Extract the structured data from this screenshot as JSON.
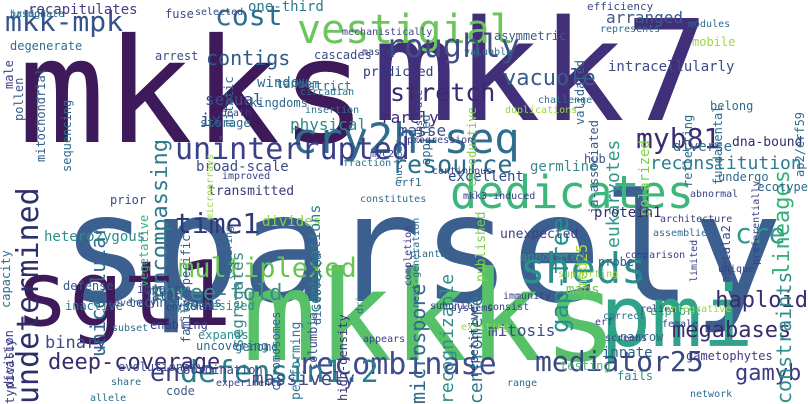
{
  "words": [
    {
      "text": "sparsely",
      "color": "#3b5f8f"
    },
    {
      "text": "mkks",
      "color": "#3f1a5a"
    },
    {
      "text": "mkk7",
      "color": "#412f7a"
    },
    {
      "text": "mkkks",
      "color": "#57c16a"
    },
    {
      "text": "sgt1",
      "color": "#3f1a5a"
    },
    {
      "text": "pmi",
      "color": "#2fa38a"
    },
    {
      "text": "cry2h-seq",
      "color": "#2e6d8e"
    },
    {
      "text": "vestigial",
      "color": "#6ac55a"
    },
    {
      "text": "mkk-mpk",
      "color": "#35538a"
    },
    {
      "text": "uninterrupted",
      "color": "#3a3f86"
    },
    {
      "text": "undetermined",
      "color": "#2c2f6c"
    },
    {
      "text": "dedicates",
      "color": "#3cb67a"
    },
    {
      "text": "recombinase",
      "color": "#3f4b8e"
    },
    {
      "text": "mediator25",
      "color": "#3a477f"
    },
    {
      "text": "defensin1.2",
      "color": "#2a7f8e"
    },
    {
      "text": "multiplexed",
      "color": "#67c453"
    },
    {
      "text": "sheds",
      "color": "#2b8f8c"
    },
    {
      "text": "myb81",
      "color": "#3b2c70"
    },
    {
      "text": "time1",
      "color": "#2f3a7a"
    },
    {
      "text": "roughly",
      "color": "#424d86"
    },
    {
      "text": "stretch",
      "color": "#3a2a70"
    },
    {
      "text": "gamyb",
      "color": "#3c3a84"
    },
    {
      "text": "cre",
      "color": "#2f9a89"
    },
    {
      "text": "lineages",
      "color": "#37b07a"
    },
    {
      "text": "resource",
      "color": "#2b6b8c"
    },
    {
      "text": "gap-free",
      "color": "#22908c"
    },
    {
      "text": "en",
      "color": "#3a3f86"
    },
    {
      "text": "encompassing",
      "color": "#2e7a8e"
    },
    {
      "text": "cost",
      "color": "#2a6f8f"
    },
    {
      "text": "recognizable",
      "color": "#2b8f8c"
    },
    {
      "text": "megabases",
      "color": "#3a2a70"
    },
    {
      "text": "haploid",
      "color": "#3a2a70"
    },
    {
      "text": "eukaryotes",
      "color": "#2f9a89"
    },
    {
      "text": "reconstitution",
      "color": "#2c7d8e"
    },
    {
      "text": "deep-coverage",
      "color": "#3a2a70"
    },
    {
      "text": "segregates",
      "color": "#3a8a8c"
    },
    {
      "text": "three-fold",
      "color": "#3c8a8d"
    },
    {
      "text": "unicellular",
      "color": "#2c6c8e"
    },
    {
      "text": "centromere",
      "color": "#2c7a8e"
    },
    {
      "text": "microspore",
      "color": "#336a8c"
    },
    {
      "text": "massively",
      "color": "#3b4c89"
    },
    {
      "text": "mitosis",
      "color": "#3a4f88"
    },
    {
      "text": "binary",
      "color": "#3e4a89"
    },
    {
      "text": "vacuole",
      "color": "#3a5a8d"
    },
    {
      "text": "constraints",
      "color": "#2e8f8c"
    },
    {
      "text": "contigs",
      "color": "#2c5a8a"
    },
    {
      "text": "window",
      "color": "#2b6f8d"
    },
    {
      "text": "ix",
      "color": "#2e4c8a"
    },
    {
      "text": "sexual",
      "color": "#3f4a88"
    },
    {
      "text": "one-third",
      "color": "#2d7a8e"
    },
    {
      "text": "recapitulates",
      "color": "#433b84"
    },
    {
      "text": "arranged",
      "color": "#3c5a8d"
    },
    {
      "text": "intracellularly",
      "color": "#3d4b8a"
    },
    {
      "text": "polarized",
      "color": "#7bd04a"
    },
    {
      "text": "rarely",
      "color": "#3f2a70"
    },
    {
      "text": "kingdoms",
      "color": "#2e6a8e"
    },
    {
      "text": "physical",
      "color": "#2e8a8d"
    },
    {
      "text": "masse",
      "color": "#3b4e8a"
    },
    {
      "text": "predicted",
      "color": "#2f3a7a"
    },
    {
      "text": "germline",
      "color": "#3c8a8d"
    },
    {
      "text": "excellent",
      "color": "#2d4a88"
    },
    {
      "text": "published",
      "color": "#7bd04a"
    },
    {
      "text": "protein1",
      "color": "#3a2a70"
    },
    {
      "text": "hub",
      "color": "#3b5a8c"
    },
    {
      "text": "diverse",
      "color": "#2f6f8e"
    },
    {
      "text": "dna-bound",
      "color": "#2e2f6e"
    },
    {
      "text": "broad-scale",
      "color": "#3c4a88"
    },
    {
      "text": "transmitted",
      "color": "#3a3a7a"
    },
    {
      "text": "heterozygous",
      "color": "#2b8c8c"
    },
    {
      "text": "divides",
      "color": "#8ad041"
    },
    {
      "text": "combinations",
      "color": "#2e7d8e"
    },
    {
      "text": "erf1",
      "color": "#2c6d8e"
    },
    {
      "text": "technologies",
      "color": "#2f5d8c"
    },
    {
      "text": "inactive",
      "color": "#2c7a8e"
    },
    {
      "text": "hypothesized",
      "color": "#2e8a8c"
    },
    {
      "text": "innate",
      "color": "#2f5f8d"
    },
    {
      "text": "narrow",
      "color": "#3a6a8c"
    },
    {
      "text": "probe",
      "color": "#3b5a8c"
    },
    {
      "text": "med25",
      "color": "#a7d84a"
    },
    {
      "text": "unexpected",
      "color": "#3d4080"
    },
    {
      "text": "annotated",
      "color": "#3a8a8c"
    },
    {
      "text": "gametophytes",
      "color": "#3e3d82"
    },
    {
      "text": "undergo",
      "color": "#2d6c8e"
    },
    {
      "text": "ecotype",
      "color": "#2c6a8e"
    },
    {
      "text": "code",
      "color": "#3a5c8c"
    },
    {
      "text": "performing",
      "color": "#2b7b8e"
    },
    {
      "text": "high-density",
      "color": "#3b2f76"
    },
    {
      "text": "columbia",
      "color": "#3a4f88"
    },
    {
      "text": "repetitive",
      "color": "#2f3f7d"
    },
    {
      "text": "fails",
      "color": "#2e8c8c"
    },
    {
      "text": "maps",
      "color": "#6fc85a"
    },
    {
      "text": "vegetative",
      "color": "#37b07a"
    },
    {
      "text": "sequencing",
      "color": "#2c6c8e"
    },
    {
      "text": "reproductive",
      "color": "#7bd04a"
    },
    {
      "text": "fundamental",
      "color": "#2c6c8e"
    },
    {
      "text": "ap2/erf59",
      "color": "#2c6e8e"
    },
    {
      "text": "ja-associated",
      "color": "#3a5a8a"
    },
    {
      "text": "reflecting",
      "color": "#2c6c8e"
    },
    {
      "text": "validated",
      "color": "#2c6c8e"
    },
    {
      "text": "storage",
      "color": "#2b6b8c"
    },
    {
      "text": "strict",
      "color": "#2e6c8e"
    },
    {
      "text": "fuse",
      "color": "#3d4b86"
    },
    {
      "text": "degenerate",
      "color": "#2d6f8e"
    },
    {
      "text": "arrest",
      "color": "#3c4c88"
    },
    {
      "text": "cascades",
      "color": "#3c4c88"
    },
    {
      "text": "tandem",
      "color": "#2c6c8e"
    },
    {
      "text": "asymmetric",
      "color": "#3b5c8c"
    },
    {
      "text": "fates",
      "color": "#3b4c88"
    },
    {
      "text": "impair",
      "color": "#3b4c88"
    },
    {
      "text": "prior",
      "color": "#3c4a88"
    },
    {
      "text": "defense",
      "color": "#3b5a8a"
    },
    {
      "text": "enabling",
      "color": "#3b3f80"
    },
    {
      "text": "uncovering",
      "color": "#2b6b8c"
    },
    {
      "text": "evolutionary",
      "color": "#3a4b88"
    },
    {
      "text": "expands",
      "color": "#2e8f8c"
    },
    {
      "text": "genome",
      "color": "#2b6b8c"
    },
    {
      "text": "chromosomes",
      "color": "#2b6b8c"
    },
    {
      "text": "explore",
      "color": "#35a87c"
    },
    {
      "text": "testing",
      "color": "#4ab873"
    },
    {
      "text": "typically",
      "color": "#3a3f86"
    },
    {
      "text": "division",
      "color": "#3a3f86"
    },
    {
      "text": "male",
      "color": "#3a3f86"
    },
    {
      "text": "pollen",
      "color": "#3a5a8a"
    },
    {
      "text": "mitochondrial",
      "color": "#2f5d8c"
    },
    {
      "text": "capacity",
      "color": "#2d6f8e"
    },
    {
      "text": "family-specific",
      "color": "#2f5d8c"
    },
    {
      "text": "apetala2",
      "color": "#3b4c88"
    },
    {
      "text": "belong",
      "color": "#2c6c8e"
    },
    {
      "text": "applied",
      "color": "#2c6c8e"
    },
    {
      "text": "mobile",
      "color": "#9bd647"
    },
    {
      "text": "efficiency",
      "color": "#3c4a86"
    },
    {
      "text": "represents",
      "color": "#2c6c8e"
    },
    {
      "text": "modules",
      "color": "#2c6c8e"
    },
    {
      "text": "valuable",
      "color": "#2c6c8e"
    },
    {
      "text": "mechanistically",
      "color": "#3c4a86"
    },
    {
      "text": "selected",
      "color": "#3c4a86"
    },
    {
      "text": "master",
      "color": "#3a3f86"
    },
    {
      "text": "mitotic",
      "color": "#2c6c8e"
    },
    {
      "text": "insertion",
      "color": "#2c6c8e"
    },
    {
      "text": "circadian",
      "color": "#2c6c8e"
    },
    {
      "text": "death",
      "color": "#3a3f86"
    },
    {
      "text": "fraction",
      "color": "#2c6c8e"
    },
    {
      "text": "constitutes",
      "color": "#2c6c8e"
    },
    {
      "text": "completion",
      "color": "#3a3f86"
    },
    {
      "text": "existing",
      "color": "#9bd647"
    },
    {
      "text": "consist",
      "color": "#3a3f86"
    },
    {
      "text": "range",
      "color": "#2c6c8e"
    },
    {
      "text": "appears",
      "color": "#3a3f86"
    },
    {
      "text": "systems",
      "color": "#3a3f86"
    },
    {
      "text": "subunit",
      "color": "#3a3f86"
    },
    {
      "text": "immunity",
      "color": "#3a3f86"
    },
    {
      "text": "driven",
      "color": "#2c6c8e"
    },
    {
      "text": "discovered",
      "color": "#2c6c8e"
    },
    {
      "text": "experiments",
      "color": "#3a3f86"
    },
    {
      "text": "coordination",
      "color": "#3a3f86"
    },
    {
      "text": "subset",
      "color": "#2c6c8e"
    },
    {
      "text": "share",
      "color": "#2c6c8e"
    },
    {
      "text": "allele",
      "color": "#2c6c8e"
    },
    {
      "text": "enriched",
      "color": "#3a3f86"
    },
    {
      "text": "erf",
      "color": "#3a3f86"
    },
    {
      "text": "correct",
      "color": "#2c6c8e"
    },
    {
      "text": "screens",
      "color": "#3a3f86"
    },
    {
      "text": "relies",
      "color": "#3a3f86"
    },
    {
      "text": "female",
      "color": "#3a3f86"
    },
    {
      "text": "network",
      "color": "#2c6c8e"
    },
    {
      "text": "integrative",
      "color": "#9bd647"
    },
    {
      "text": "preferentially",
      "color": "#3a3f86"
    },
    {
      "text": "abnormal",
      "color": "#3a3f86"
    },
    {
      "text": "assemblies",
      "color": "#2c6c8e"
    },
    {
      "text": "architecture",
      "color": "#3a3f86"
    },
    {
      "text": "requiring",
      "color": "#2c6c8e"
    },
    {
      "text": "improved",
      "color": "#3a3f86"
    },
    {
      "text": "planta",
      "color": "#2c6c8e"
    },
    {
      "text": "severely",
      "color": "#3a3f86"
    },
    {
      "text": "unique",
      "color": "#3a3f86"
    },
    {
      "text": "supporting",
      "color": "#9bd647"
    },
    {
      "text": "comparison",
      "color": "#3a3f86"
    },
    {
      "text": "similarity",
      "color": "#2c6c8e"
    },
    {
      "text": "myc2",
      "color": "#3a3f86"
    },
    {
      "text": "nuclear",
      "color": "#2c6c8e"
    },
    {
      "text": "next-generation",
      "color": "#2c6c8e"
    },
    {
      "text": "continuous",
      "color": "#3a3f86"
    },
    {
      "text": "duplications",
      "color": "#9bd647"
    },
    {
      "text": "challenge",
      "color": "#2c6c8e"
    },
    {
      "text": "substrate",
      "color": "#3a3f86"
    },
    {
      "text": "progression",
      "color": "#3a3f86"
    },
    {
      "text": "microarrays",
      "color": "#9bd647"
    },
    {
      "text": "mkk3-induced",
      "color": "#3a3f86"
    },
    {
      "text": "limited",
      "color": "#3a3f86"
    },
    {
      "text": "jasmonate",
      "color": "#2c6c8e"
    },
    {
      "text": "bridge",
      "color": "#2c6c8e"
    }
  ]
}
